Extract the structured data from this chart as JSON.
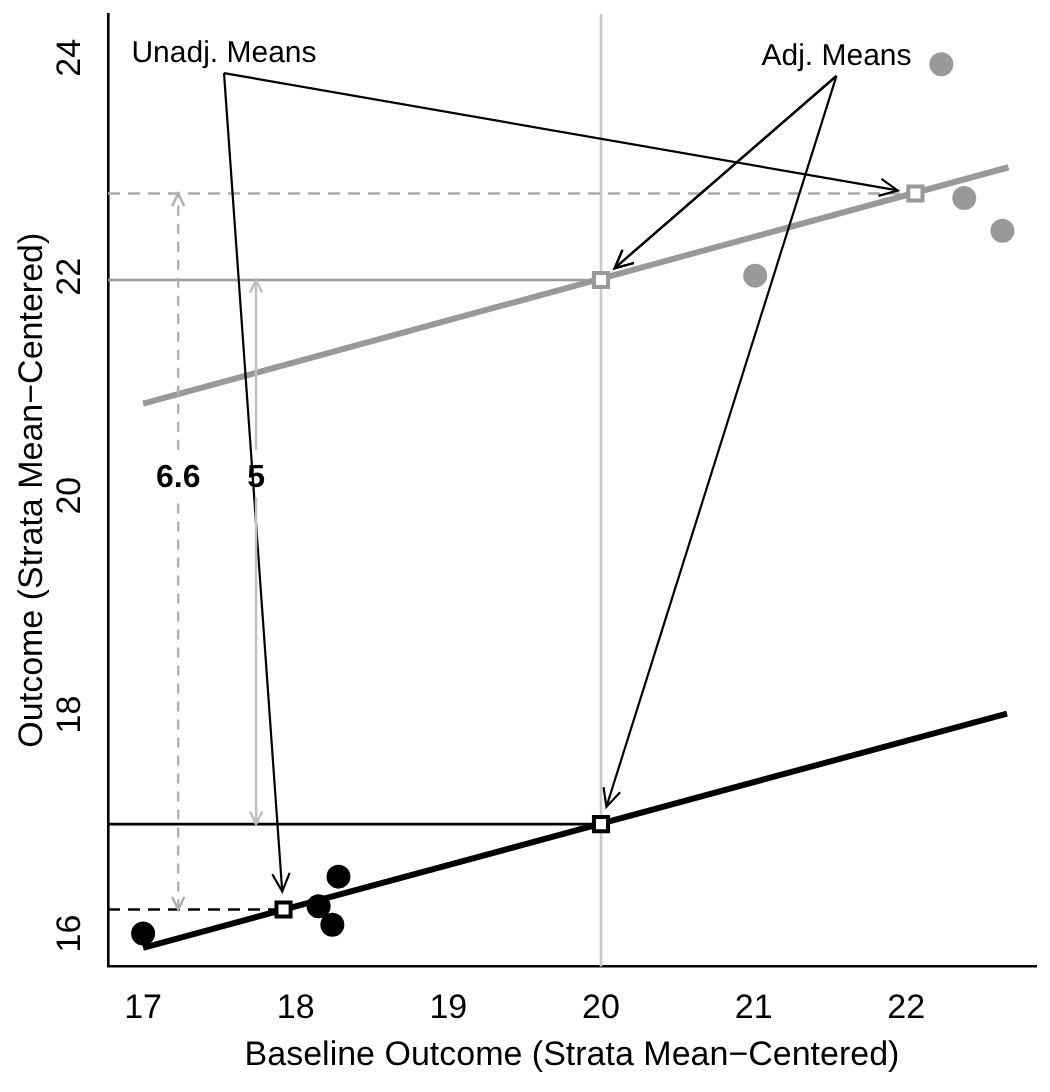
{
  "chart_data": {
    "type": "scatter",
    "xlabel": "Baseline Outcome (Strata Mean−Centered)",
    "ylabel": "Outcome (Strata Mean−Centered)",
    "xlim": [
      16.77,
      22.85
    ],
    "xticks": [
      17,
      18,
      19,
      20,
      21,
      22
    ],
    "ylim": [
      15.7,
      24.4
    ],
    "yticks": [
      16,
      18,
      20,
      22,
      24
    ],
    "grid": false,
    "legend": false,
    "series": [
      {
        "type": "scatter",
        "marker": "circle",
        "color": "#999999",
        "x": [
          22.23,
          22.38,
          22.63,
          21.01
        ],
        "values": [
          23.94,
          22.72,
          22.42,
          22.01
        ]
      },
      {
        "type": "scatter",
        "marker": "circle",
        "color": "#000000",
        "x": [
          17.0,
          18.15,
          18.28,
          18.24
        ],
        "values": [
          16.0,
          16.25,
          16.52,
          16.08
        ]
      },
      {
        "type": "line",
        "marker": "none",
        "color": "#999999",
        "x": [
          17,
          22.67
        ],
        "values": [
          20.84,
          23.0
        ]
      },
      {
        "type": "line",
        "marker": "none",
        "color": "#000000",
        "x": [
          17,
          22.66
        ],
        "values": [
          15.87,
          18.01
        ]
      },
      {
        "type": "scatter",
        "marker": "square",
        "colors": [
          "#000000",
          "#999999"
        ],
        "x": [
          17.92,
          22.06
        ],
        "values": [
          16.22,
          22.76
        ]
      },
      {
        "type": "scatter",
        "marker": "square",
        "colors": [
          "#000000",
          "#999999"
        ],
        "x": [
          20,
          20
        ],
        "values": [
          17.0,
          21.97
        ]
      },
      {
        "type": "line",
        "marker": "none",
        "line_style": "solid",
        "color": "#999999",
        "x": [
          16.77,
          20
        ],
        "values": [
          21.97,
          21.97
        ]
      },
      {
        "type": "line",
        "marker": "none",
        "line_style": "solid",
        "color": "#000000",
        "x": [
          16.77,
          20
        ],
        "values": [
          17.0,
          17.0
        ]
      },
      {
        "type": "line",
        "marker": "none",
        "line_style": "dashed",
        "color": "#aaaaaa",
        "x": [
          16.77,
          22.06
        ],
        "values": [
          22.76,
          22.76
        ]
      },
      {
        "type": "line",
        "marker": "none",
        "line_style": "dashed",
        "color": "#000000",
        "x": [
          16.77,
          17.92
        ],
        "values": [
          16.22,
          16.22
        ]
      }
    ],
    "ref_lines": [
      {
        "axis": "x",
        "value": 20,
        "color": "#c8c8c8"
      }
    ],
    "annotations": [
      "Unadj. Means",
      {
        "text": "Adj. Means",
        "x": 20,
        "y": 21.97
      },
      {
        "text": "6.6",
        "x": 17.23,
        "y": 22.76
      },
      {
        "text": "5",
        "x": 17.74,
        "y": 21.97
      }
    ]
  }
}
